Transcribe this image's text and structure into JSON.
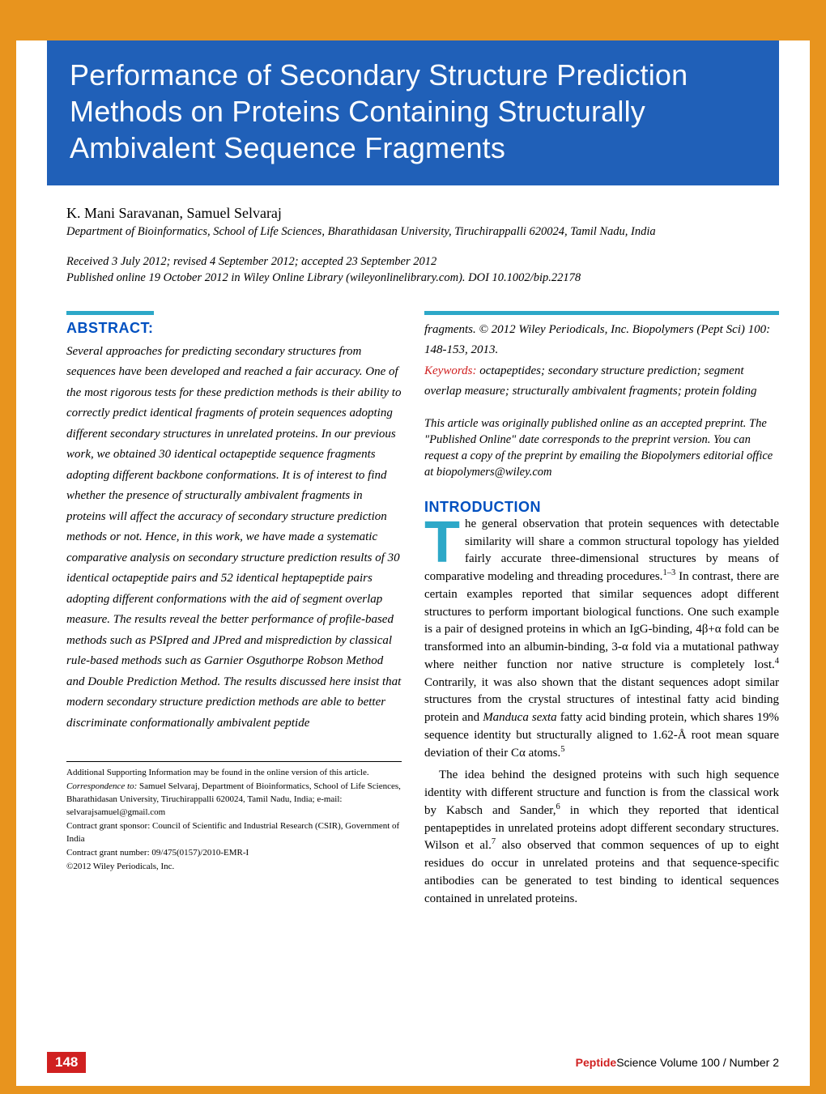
{
  "colors": {
    "page_bg": "#e8941e",
    "paper_bg": "#ffffff",
    "title_bg": "#2060b8",
    "title_fg": "#ffffff",
    "accent_teal": "#2da8c8",
    "heading_blue": "#0050c0",
    "keyword_red": "#d02020",
    "page_badge_bg": "#d02020"
  },
  "title": "Performance of Secondary Structure Prediction Methods on Proteins Containing Structurally Ambivalent Sequence Fragments",
  "authors": "K. Mani Saravanan, Samuel Selvaraj",
  "affiliation": "Department of Bioinformatics, School of Life Sciences, Bharathidasan University, Tiruchirappalli 620024, Tamil Nadu, India",
  "dates_line1": "Received 3 July 2012; revised 4 September 2012; accepted 23 September 2012",
  "dates_line2": "Published online 19 October 2012 in Wiley Online Library (wileyonlinelibrary.com). DOI 10.1002/bip.22178",
  "abstract_heading": "ABSTRACT:",
  "abstract_body": "Several approaches for predicting secondary structures from sequences have been developed and reached a fair accuracy. One of the most rigorous tests for these prediction methods is their ability to correctly predict identical fragments of protein sequences adopting different secondary structures in unrelated proteins. In our previous work, we obtained 30 identical octapeptide sequence fragments adopting different backbone conformations. It is of interest to find whether the presence of structurally ambivalent fragments in proteins will affect the accuracy of secondary structure prediction methods or not. Hence, in this work, we have made a systematic comparative analysis on secondary structure prediction results of 30 identical octapeptide pairs and 52 identical heptapeptide pairs adopting different conformations with the aid of segment overlap measure. The results reveal the better performance of profile-based methods such as PSIpred and JPred and misprediction by classical rule-based methods such as Garnier Osguthorpe Robson Method and Double Prediction Method. The results discussed here insist that modern secondary structure prediction methods are able to better discriminate conformationally ambivalent peptide",
  "right_top_text": "fragments. © 2012 Wiley Periodicals, Inc. Biopolymers (Pept Sci) 100: 148-153, 2013.",
  "keywords_label": "Keywords:",
  "keywords_text": " octapeptides; secondary structure prediction; segment overlap measure; structurally ambivalent fragments; protein folding",
  "preprint_note": "This article was originally published online as an accepted preprint. The \"Published Online\" date corresponds to the preprint version. You can request a copy of the preprint by emailing the Biopolymers editorial office at biopolymers@wiley.com",
  "intro_heading": "INTRODUCTION",
  "intro": {
    "dropcap": "T",
    "p1_after_drop": "he general observation that protein sequences with detectable similarity will share a common structural topology has yielded fairly accurate three-dimensional structures by means of comparative modeling and threading procedures.",
    "p1_tail": " In contrast, there are certain examples reported that similar sequences adopt different structures to perform important biological functions. One such example is a pair of designed proteins in which an IgG-binding, 4β+α fold can be transformed into an albumin-binding, 3-α fold via a mutational pathway where neither function nor native structure is completely lost.",
    "p1_after_ref4": " Contrarily, it was also shown that the distant sequences adopt similar structures from the crystal structures of intestinal fatty acid binding protein and ",
    "p1_italic_species": "Manduca sexta",
    "p1_after_species": " fatty acid binding protein, which shares 19% sequence identity but structurally aligned to 1.62-Å root mean square deviation of their Cα atoms.",
    "p2_a": "The idea behind the designed proteins with such high sequence identity with different structure and function is from the classical work by Kabsch and Sander,",
    "p2_b": " in which they reported that identical pentapeptides in unrelated proteins adopt different secondary structures. Wilson et al.",
    "p2_c": " also observed that common sequences of up to eight residues do occur in unrelated proteins and that sequence-specific antibodies can be generated to test binding to identical sequences contained in unrelated proteins.",
    "ref_1_3": "1–3",
    "ref_4": "4",
    "ref_5": "5",
    "ref_6": "6",
    "ref_7": "7"
  },
  "supporting": {
    "line1": "Additional Supporting Information may be found in the online version of this article.",
    "corr_label": "Correspondence to:",
    "corr_text": " Samuel Selvaraj, Department of Bioinformatics, School of Life Sciences, Bharathidasan University, Tiruchirappalli 620024, Tamil Nadu, India; e-mail: selvarajsamuel@gmail.com",
    "sponsor": "Contract grant sponsor: Council of Scientific and Industrial Research (CSIR), Government of India",
    "grant": "Contract grant number: 09/475(0157)/2010-EMR-I",
    "copyright": "©2012 Wiley Periodicals, Inc."
  },
  "footer": {
    "page": "148",
    "journal_bold": "Peptide",
    "journal_rest": "Science Volume 100 / Number 2"
  }
}
